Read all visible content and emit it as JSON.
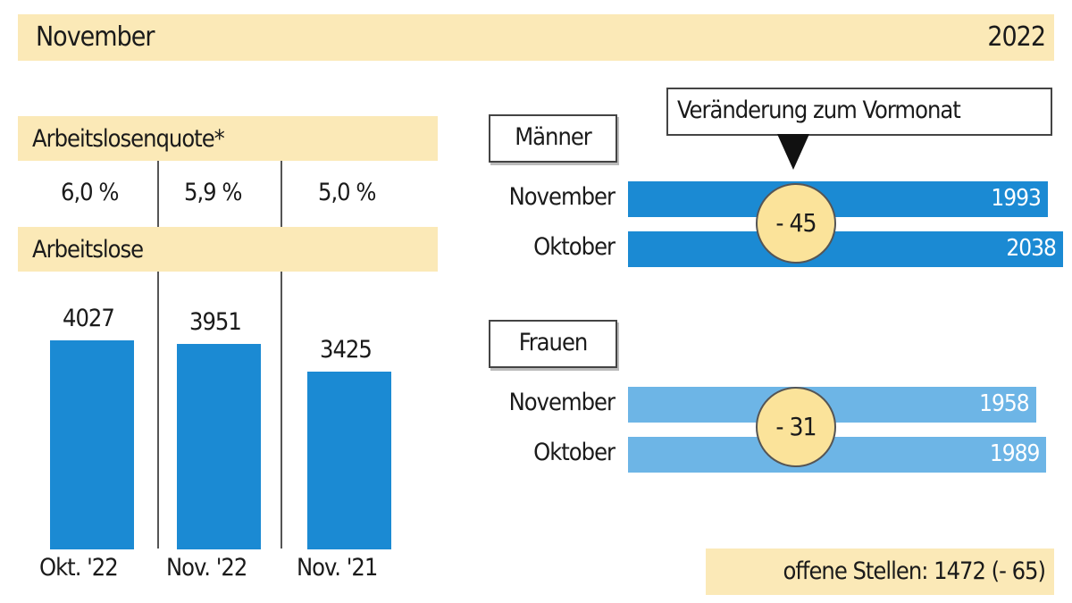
{
  "header": {
    "month": "November",
    "year": "2022"
  },
  "colors": {
    "band": "#fbe9b7",
    "men_bar": "#1b8ad3",
    "women_bar": "#6db5e6",
    "circle": "#fbe39a"
  },
  "left": {
    "quote_title": "Arbeitslosenquote*",
    "quotes": [
      "6,0 %",
      "5,9 %",
      "5,0 %"
    ],
    "unemployed_title": "Arbeitslose"
  },
  "right": {
    "change_label": "Veränderung zum Vormonat",
    "men": {
      "title": "Männer",
      "rows": [
        {
          "label": "November",
          "value": "1993"
        },
        {
          "label": "Oktober",
          "value": "2038"
        }
      ],
      "change": "- 45"
    },
    "women": {
      "title": "Frauen",
      "rows": [
        {
          "label": "November",
          "value": "1958"
        },
        {
          "label": "Oktober",
          "value": "1989"
        }
      ],
      "change": "- 31"
    },
    "open_positions": "offene Stellen: 1472 (- 65)"
  },
  "chart_data": [
    {
      "type": "bar",
      "title": "Arbeitslose",
      "categories": [
        "Okt. '22",
        "Nov. '22",
        "Nov. '21"
      ],
      "values": [
        4027,
        3951,
        3425
      ],
      "value_labels": [
        "4027",
        "3951",
        "3425"
      ]
    },
    {
      "type": "bar",
      "orientation": "horizontal",
      "title": "Männer",
      "categories": [
        "November",
        "Oktober"
      ],
      "values": [
        1993,
        2038
      ]
    },
    {
      "type": "bar",
      "orientation": "horizontal",
      "title": "Frauen",
      "categories": [
        "November",
        "Oktober"
      ],
      "values": [
        1958,
        1989
      ]
    }
  ]
}
